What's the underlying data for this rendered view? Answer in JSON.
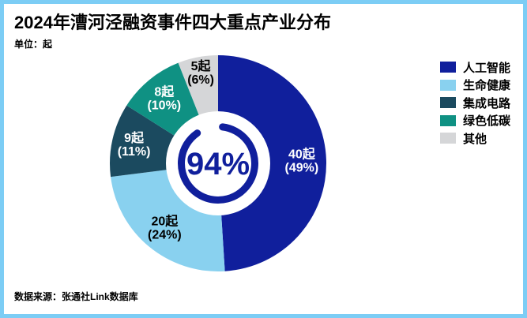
{
  "header": {
    "title": "2024年漕河泾融资事件四大重点产业分布",
    "unit": "单位：起"
  },
  "footer": {
    "source": "数据来源：张通社Link数据库"
  },
  "colors": {
    "accent_navy": "#101f9c",
    "border_blue": "#7ccdf5",
    "hole_white": "#ffffff"
  },
  "chart_data": {
    "type": "pie",
    "title": "2024年漕河泾融资事件四大重点产业分布",
    "unit": "起",
    "center_label": "94%",
    "legend_position": "right",
    "start_angle_deg": 0,
    "direction": "clockwise",
    "slices": [
      {
        "label": "人工智能",
        "count": 40,
        "percent": 49,
        "count_label": "40起",
        "percent_label": "(49%)",
        "color": "#101f9c",
        "text_color": "#ffffff",
        "label_radius": 106
      },
      {
        "label": "生命健康",
        "count": 20,
        "percent": 24,
        "count_label": "20起",
        "percent_label": "(24%)",
        "color": "#89d1ef",
        "text_color": "#000000",
        "label_radius": 106
      },
      {
        "label": "集成电路",
        "count": 9,
        "percent": 11,
        "count_label": "9起",
        "percent_label": "(11%)",
        "color": "#1b4a5f",
        "text_color": "#ffffff",
        "label_radius": 109
      },
      {
        "label": "绿色低碳",
        "count": 8,
        "percent": 10,
        "count_label": "8起",
        "percent_label": "(10%)",
        "color": "#0f9183",
        "text_color": "#ffffff",
        "label_radius": 107
      },
      {
        "label": "其他",
        "count": 5,
        "percent": 6,
        "count_label": "5起",
        "percent_label": "(6%)",
        "color": "#d5d6d8",
        "text_color": "#000000",
        "label_radius": 117
      }
    ]
  }
}
